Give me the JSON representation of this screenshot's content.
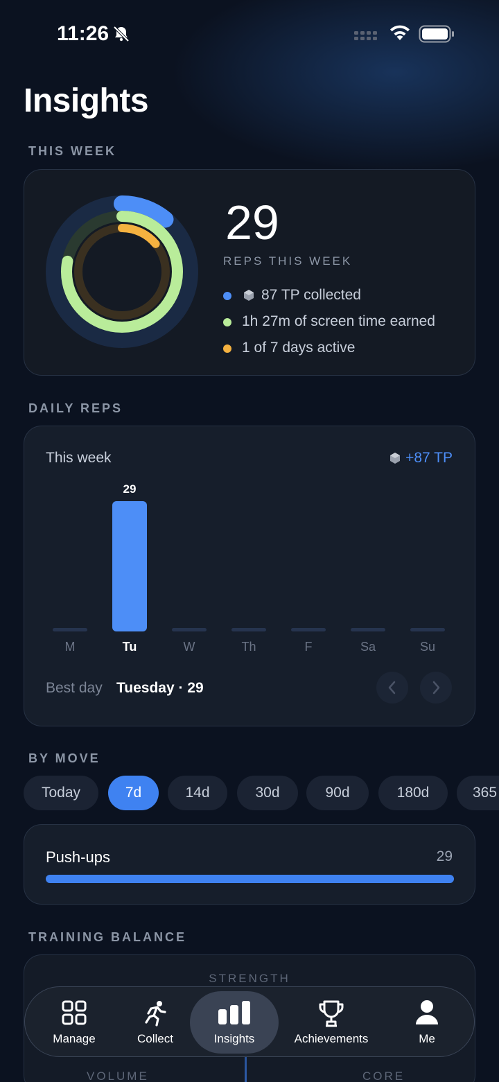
{
  "status_bar": {
    "time": "11:26"
  },
  "page_title": "Insights",
  "this_week": {
    "section_label": "THIS WEEK",
    "reps": "29",
    "reps_label": "REPS THIS WEEK",
    "legend": [
      {
        "text": "87 TP collected",
        "color": "#4d8ef7",
        "icon": "gem-icon"
      },
      {
        "text": "1h 27m of screen time earned",
        "color": "#b9ec9a"
      },
      {
        "text": "1 of 7 days active",
        "color": "#f5b240"
      }
    ],
    "rings": [
      {
        "name": "tp",
        "color": "#4d8ef7",
        "track": "#1a2a44",
        "progress": 0.11
      },
      {
        "name": "screen-time",
        "color": "#b9ec9a",
        "track": "#2a3a30",
        "progress": 0.78
      },
      {
        "name": "active-days",
        "color": "#f5b240",
        "track": "#3a3020",
        "progress": 0.14
      }
    ]
  },
  "daily_reps": {
    "section_label": "DAILY REPS",
    "title": "This week",
    "tp_badge": "+87 TP",
    "best_day_label": "Best day",
    "best_day_value": "Tuesday · 29",
    "highlight_day": "Tu"
  },
  "chart_data": {
    "type": "bar",
    "categories": [
      "M",
      "Tu",
      "W",
      "Th",
      "F",
      "Sa",
      "Su"
    ],
    "values": [
      0,
      29,
      0,
      0,
      0,
      0,
      0
    ],
    "data_labels": [
      "",
      "29",
      "",
      "",
      "",
      "",
      ""
    ],
    "title": "This week",
    "xlabel": "",
    "ylabel": "",
    "ylim": [
      0,
      29
    ],
    "grid": false,
    "bar_color": "#4d8ef7"
  },
  "by_move": {
    "section_label": "BY MOVE",
    "chips": [
      "Today",
      "7d",
      "14d",
      "30d",
      "90d",
      "180d",
      "365"
    ],
    "active_chip": "7d",
    "moves": [
      {
        "name": "Push-ups",
        "count": "29",
        "progress": 1.0
      }
    ]
  },
  "training_balance": {
    "section_label": "TRAINING BALANCE",
    "axis_top": "STRENGTH",
    "axis_left": "VOLUME",
    "axis_right": "CORE"
  },
  "tabbar": {
    "tabs": [
      {
        "label": "Manage",
        "icon": "grid-icon"
      },
      {
        "label": "Collect",
        "icon": "runner-icon"
      },
      {
        "label": "Insights",
        "icon": "bar-chart-icon"
      },
      {
        "label": "Achievements",
        "icon": "trophy-icon"
      },
      {
        "label": "Me",
        "icon": "person-icon"
      }
    ],
    "active": "Insights"
  }
}
